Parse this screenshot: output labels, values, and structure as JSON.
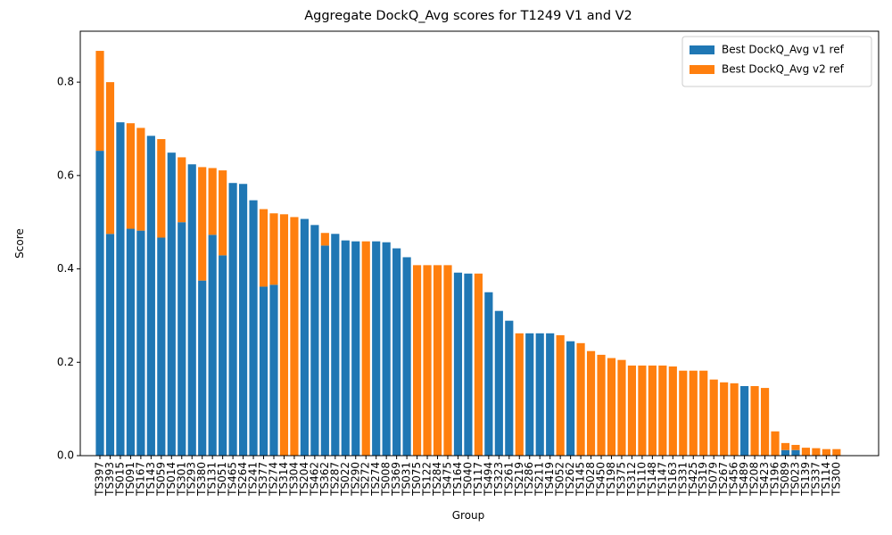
{
  "chart_data": {
    "type": "bar",
    "stacked": true,
    "title": "Aggregate DockQ_Avg scores for T1249 V1 and V2",
    "x_label": "Group",
    "y_label": "Score",
    "categories": [
      "TS397",
      "TS393",
      "TS015",
      "TS091",
      "TS167",
      "TS143",
      "TS059",
      "TS014",
      "TS301",
      "TS293",
      "TS380",
      "TS131",
      "TS051",
      "TS465",
      "TS264",
      "TS241",
      "TS377",
      "TS274",
      "TS314",
      "TS304",
      "TS204",
      "TS462",
      "TS362",
      "TS287",
      "TS022",
      "TS290",
      "TS272",
      "TS274",
      "TS008",
      "TS369",
      "TS031",
      "TS075",
      "TS122",
      "TS284",
      "TS475",
      "TS164",
      "TS040",
      "TS117",
      "TS494",
      "TS323",
      "TS261",
      "TS219",
      "TS286",
      "TS211",
      "TS419",
      "TS052",
      "TS262",
      "TS145",
      "TS028",
      "TS450",
      "TS198",
      "TS375",
      "TS312",
      "TS110",
      "TS148",
      "TS147",
      "TS163",
      "TS331",
      "TS425",
      "TS319",
      "TS079",
      "TS267",
      "TS456",
      "TS489",
      "TS208",
      "TS423",
      "TS196",
      "TS089",
      "TS023",
      "TS139",
      "TS337",
      "TS114",
      "TS300"
    ],
    "series": [
      {
        "name": "Best DockQ_Avg v1 ref",
        "color": "#1f77b4",
        "values": [
          0.653,
          0.475,
          0.714,
          0.486,
          0.482,
          0.685,
          0.467,
          0.649,
          0.5,
          0.624,
          0.375,
          0.473,
          0.429,
          0.584,
          0.582,
          0.547,
          0.362,
          0.366,
          0,
          0,
          0.507,
          0.494,
          0.45,
          0.475,
          0.461,
          0.459,
          0,
          0.459,
          0.457,
          0.444,
          0.425,
          0,
          0,
          0,
          0,
          0.392,
          0.39,
          0,
          0.35,
          0.31,
          0.289,
          0,
          0.262,
          0.262,
          0.262,
          0,
          0.245,
          0,
          0,
          0,
          0,
          0,
          0,
          0,
          0,
          0,
          0,
          0,
          0,
          0,
          0,
          0,
          0,
          0.149,
          0,
          0,
          0,
          0.012,
          0.012,
          0,
          0,
          0,
          0
        ]
      },
      {
        "name": "Best DockQ_Avg v2 ref",
        "color": "#ff7f0e",
        "values": [
          0.214,
          0.325,
          0,
          0.226,
          0.22,
          0,
          0.211,
          0,
          0.139,
          0,
          0.243,
          0.143,
          0.182,
          0,
          0,
          0,
          0.166,
          0.153,
          0.517,
          0.511,
          0,
          0,
          0.027,
          0,
          0,
          0,
          0.459,
          0,
          0,
          0,
          0,
          0.408,
          0.408,
          0.408,
          0.408,
          0,
          0,
          0.39,
          0,
          0,
          0,
          0.262,
          0,
          0,
          0,
          0.258,
          0,
          0.241,
          0.224,
          0.216,
          0.209,
          0.205,
          0.193,
          0.193,
          0.193,
          0.193,
          0.191,
          0.182,
          0.182,
          0.182,
          0.163,
          0.157,
          0.155,
          0,
          0.149,
          0.145,
          0.052,
          0.015,
          0.011,
          0.017,
          0.016,
          0.014,
          0.014
        ]
      }
    ],
    "ylim": [
      0,
      0.9091
    ],
    "yticks": [
      {
        "value": 0,
        "label": "0.0"
      },
      {
        "value": 0.2,
        "label": "0.2"
      },
      {
        "value": 0.4,
        "label": "0.4"
      },
      {
        "value": 0.6,
        "label": "0.6"
      },
      {
        "value": 0.8,
        "label": "0.8"
      }
    ],
    "legend": "upper right",
    "grid": false
  }
}
